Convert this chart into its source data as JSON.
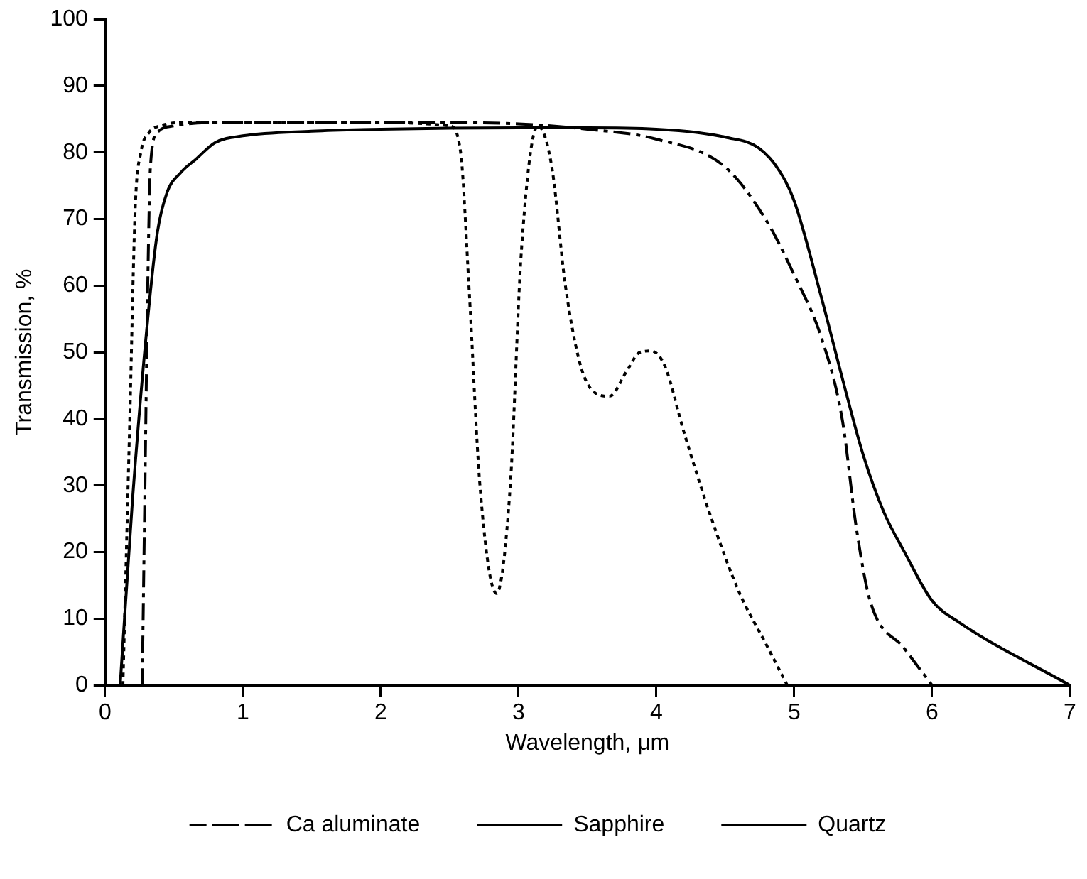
{
  "chart_data": {
    "type": "line",
    "xlabel": "Wavelength, μm",
    "ylabel": "Transmission, %",
    "xlim": [
      0,
      7
    ],
    "ylim": [
      0,
      100
    ],
    "xticks": [
      0,
      1,
      2,
      3,
      4,
      5,
      6,
      7
    ],
    "yticks": [
      0,
      10,
      20,
      30,
      40,
      50,
      60,
      70,
      80,
      90,
      100
    ],
    "grid": false,
    "legend": "bottom",
    "marker": "none",
    "series": [
      {
        "name": "Ca aluminate",
        "color": "#000000",
        "line_style": "dashed",
        "x": [
          0.27,
          0.29,
          0.31,
          0.33,
          0.38,
          0.5,
          0.8,
          1.5,
          2.5,
          3,
          3.5,
          4,
          4.5,
          4.8,
          5,
          5.2,
          5.35,
          5.45,
          5.55,
          5.8,
          6.0
        ],
        "values": [
          0,
          30,
          60,
          78,
          83,
          84,
          84.5,
          84.5,
          84.5,
          84.3,
          83.5,
          82,
          77.8,
          69.7,
          61.6,
          52,
          39.7,
          23.7,
          12.7,
          5.5,
          0
        ]
      },
      {
        "name": "Sapphire",
        "color": "#000000",
        "line_style": "solid",
        "x": [
          0.11,
          0.2,
          0.31,
          0.38,
          0.45,
          0.55,
          0.66,
          0.8,
          1.0,
          1.5,
          2,
          3,
          3.5,
          4,
          4.3,
          4.5,
          4.74,
          4.9,
          5.0,
          5.2,
          5.35,
          5.5,
          5.65,
          5.8,
          6.0,
          6.2,
          7.0
        ],
        "values": [
          0,
          28,
          55,
          68,
          74,
          77,
          79,
          81.5,
          82.5,
          83.2,
          83.5,
          83.7,
          83.7,
          83.5,
          83,
          82.3,
          80.7,
          77,
          72.7,
          58,
          46,
          34.6,
          26,
          20,
          12.7,
          9.4,
          0
        ]
      },
      {
        "name": "Quartz",
        "color": "#000000",
        "line_style": "dotted",
        "x": [
          0.13,
          0.18,
          0.22,
          0.26,
          0.32,
          0.4,
          0.6,
          1,
          2,
          2.5,
          2.58,
          2.64,
          2.72,
          2.84,
          2.94,
          3.02,
          3.14,
          3.24,
          3.34,
          3.45,
          3.55,
          3.66,
          3.78,
          3.88,
          3.96,
          4.06,
          4.2,
          4.4,
          4.6,
          4.8,
          4.95
        ],
        "values": [
          0,
          40,
          72,
          80,
          83,
          84,
          84.5,
          84.5,
          84.5,
          84,
          80,
          60,
          30,
          13.8,
          30,
          65,
          84,
          78,
          60,
          48,
          44,
          43.4,
          47,
          50,
          50.2,
          48,
          38,
          25,
          14,
          6,
          0
        ]
      }
    ]
  }
}
